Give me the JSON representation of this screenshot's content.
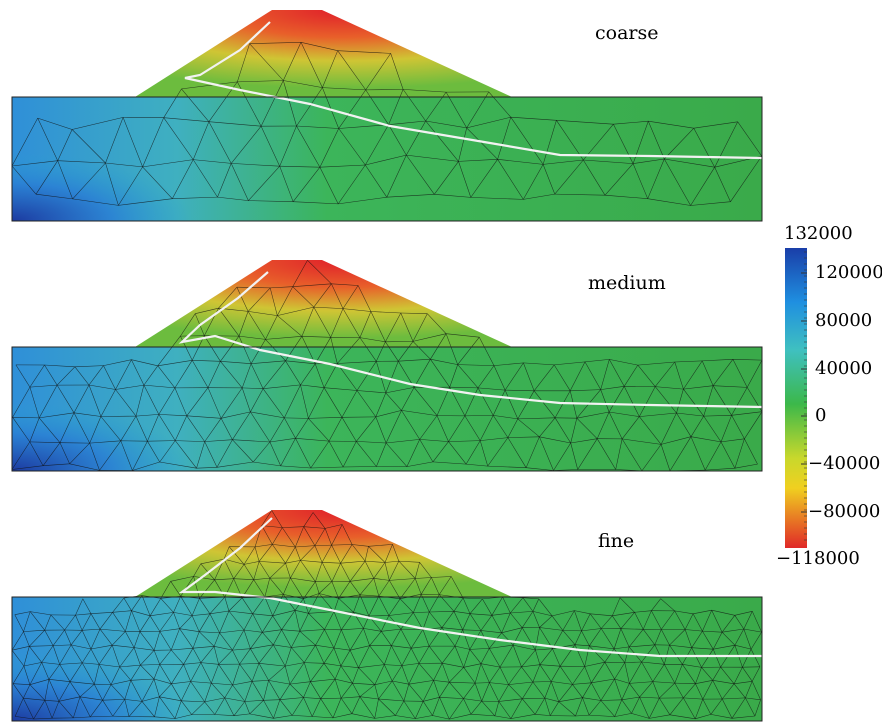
{
  "panels": [
    {
      "name": "coarse",
      "mesh_density": "coarse"
    },
    {
      "name": "medium",
      "mesh_density": "medium"
    },
    {
      "name": "fine",
      "mesh_density": "fine"
    }
  ],
  "colorbar": {
    "max_label": "132000",
    "min_label": "−118000",
    "ticks": [
      "120000",
      "80000",
      "40000",
      "0",
      "−40000",
      "−80000"
    ],
    "colors": [
      "#1a3ea8",
      "#1f8fe0",
      "#3fc0c0",
      "#3cb84a",
      "#c8d82c",
      "#f0d020",
      "#e02828"
    ]
  },
  "colors": {
    "crest": "#e8252a",
    "slope": "#d8c833",
    "foundation_green": "#3aa84a",
    "deep_blue": "#1c3fa6",
    "mid_blue": "#2a8ed8",
    "mesh_line": "#101010",
    "slip_surface": "#f2f2f2"
  }
}
